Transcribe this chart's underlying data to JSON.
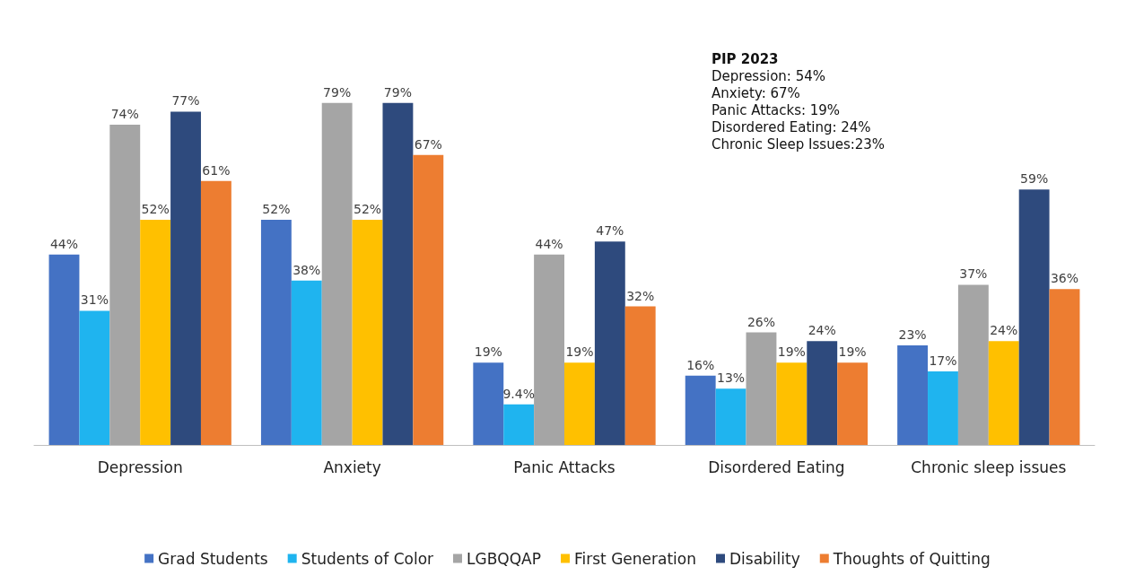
{
  "chart_data": {
    "type": "bar",
    "categories": [
      "Depression",
      "Anxiety",
      "Panic Attacks",
      "Disordered Eating",
      "Chronic sleep issues"
    ],
    "series": [
      {
        "name": "Grad Students",
        "color": "#4472c4",
        "values": [
          44,
          52,
          19,
          16,
          23
        ],
        "value_labels": [
          "44%",
          "52%",
          "19%",
          "16%",
          "23%"
        ]
      },
      {
        "name": "Students of Color",
        "color": "#1fb4ef",
        "values": [
          31,
          38,
          9.4,
          13,
          17
        ],
        "value_labels": [
          "31%",
          "38%",
          "9.4%",
          "13%",
          "17%"
        ]
      },
      {
        "name": "LGBQQAP",
        "color": "#a5a5a5",
        "values": [
          74,
          79,
          44,
          26,
          37
        ],
        "value_labels": [
          "74%",
          "79%",
          "44%",
          "26%",
          "37%"
        ]
      },
      {
        "name": "First Generation",
        "color": "#ffc000",
        "values": [
          52,
          52,
          19,
          19,
          24
        ],
        "value_labels": [
          "52%",
          "52%",
          "19%",
          "19%",
          "24%"
        ]
      },
      {
        "name": "Disability",
        "color": "#2e4a7d",
        "values": [
          77,
          79,
          47,
          24,
          59
        ],
        "value_labels": [
          "77%",
          "79%",
          "47%",
          "24%",
          "59%"
        ]
      },
      {
        "name": "Thoughts of Quitting",
        "color": "#ed7d31",
        "values": [
          61,
          67,
          32,
          19,
          36
        ],
        "value_labels": [
          "61%",
          "67%",
          "32%",
          "19%",
          "36%"
        ]
      }
    ],
    "annotations": [
      "PIP 2023",
      "Depression: 54%",
      "Anxiety: 67%",
      "Panic Attacks: 19%",
      "Disordered Eating: 24%",
      "Chronic Sleep Issues:23%"
    ],
    "legend": "bottom"
  }
}
